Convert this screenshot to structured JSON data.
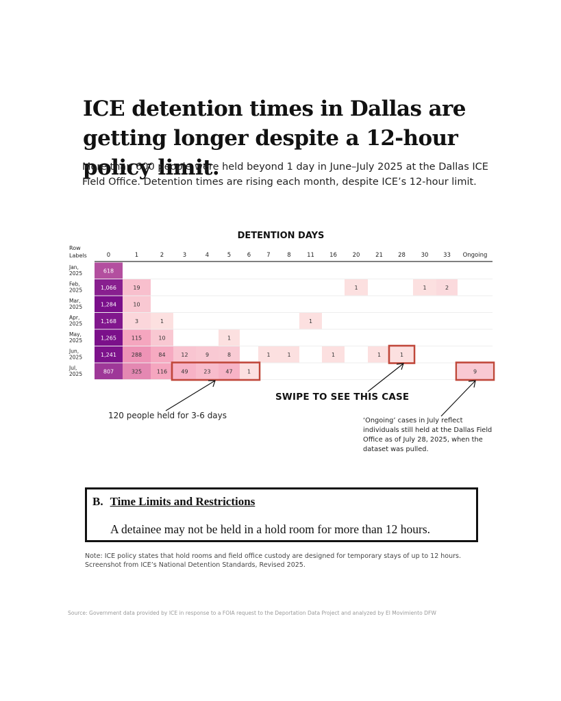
{
  "title": "ICE detention times in Dallas are getting longer despite a 12-hour policy limit.",
  "subtitle": "More than 600 people were held beyond 1 day in June–July 2025 at the Dallas ICE Field Office. Detention times are rising each month, despite ICE’s 12-hour limit.",
  "chart_data": {
    "type": "heatmap",
    "title": "DETENTION DAYS",
    "row_header": "Row Labels",
    "columns": [
      "0",
      "1",
      "2",
      "3",
      "4",
      "5",
      "6",
      "7",
      "8",
      "11",
      "16",
      "20",
      "21",
      "28",
      "30",
      "33",
      "Ongoing"
    ],
    "rows": [
      {
        "label": "Jan, 2025",
        "values": [
          618,
          null,
          null,
          null,
          null,
          null,
          null,
          null,
          null,
          null,
          null,
          null,
          null,
          null,
          null,
          null,
          null
        ]
      },
      {
        "label": "Feb, 2025",
        "values": [
          1066,
          19,
          null,
          null,
          null,
          null,
          null,
          null,
          null,
          null,
          null,
          1,
          null,
          null,
          1,
          2,
          null
        ]
      },
      {
        "label": "Mar, 2025",
        "values": [
          1284,
          10,
          null,
          null,
          null,
          null,
          null,
          null,
          null,
          null,
          null,
          null,
          null,
          null,
          null,
          null,
          null
        ]
      },
      {
        "label": "Apr, 2025",
        "values": [
          1168,
          3,
          1,
          null,
          null,
          null,
          null,
          null,
          null,
          1,
          null,
          null,
          null,
          null,
          null,
          null,
          null
        ]
      },
      {
        "label": "May, 2025",
        "values": [
          1265,
          115,
          10,
          null,
          null,
          1,
          null,
          null,
          null,
          null,
          null,
          null,
          null,
          null,
          null,
          null,
          null
        ]
      },
      {
        "label": "Jun, 2025",
        "values": [
          1241,
          288,
          84,
          12,
          9,
          8,
          null,
          1,
          1,
          null,
          1,
          null,
          1,
          1,
          null,
          null,
          null
        ]
      },
      {
        "label": "Jul, 2025",
        "values": [
          807,
          325,
          116,
          49,
          23,
          47,
          1,
          null,
          null,
          null,
          null,
          null,
          null,
          null,
          null,
          null,
          9
        ]
      }
    ],
    "value_labels": [
      [
        "618",
        "",
        "",
        "",
        "",
        "",
        "",
        "",
        "",
        "",
        "",
        "",
        "",
        "",
        "",
        "",
        ""
      ],
      [
        "1,066",
        "19",
        "",
        "",
        "",
        "",
        "",
        "",
        "",
        "",
        "",
        "1",
        "",
        "",
        "1",
        "2",
        ""
      ],
      [
        "1,284",
        "10",
        "",
        "",
        "",
        "",
        "",
        "",
        "",
        "",
        "",
        "",
        "",
        "",
        "",
        "",
        ""
      ],
      [
        "1,168",
        "3",
        "1",
        "",
        "",
        "",
        "",
        "",
        "",
        "1",
        "",
        "",
        "",
        "",
        "",
        "",
        ""
      ],
      [
        "1,265",
        "115",
        "10",
        "",
        "",
        "1",
        "",
        "",
        "",
        "",
        "",
        "",
        "",
        "",
        "",
        "",
        ""
      ],
      [
        "1,241",
        "288",
        "84",
        "12",
        "9",
        "8",
        "",
        "1",
        "1",
        "",
        "1",
        "",
        "1",
        "1",
        "",
        "",
        ""
      ],
      [
        "807",
        "325",
        "116",
        "49",
        "23",
        "47",
        "1",
        "",
        "",
        "",
        "",
        "",
        "",
        "",
        "",
        "",
        "9"
      ]
    ],
    "colors": {
      "scale_low": "#fdeae6",
      "scale_mid": "#f49ab8",
      "scale_high": "#7a0f8a",
      "highlight_box": "#c0473a"
    },
    "highlights": [
      {
        "row": "Jul, 2025",
        "columns": [
          "3",
          "6"
        ]
      },
      {
        "row": "Jun, 2025",
        "columns": [
          "28",
          "28"
        ]
      },
      {
        "row": "Jul, 2025",
        "columns": [
          "Ongoing",
          "Ongoing"
        ]
      }
    ],
    "annotations": [
      "SWIPE TO SEE THIS CASE",
      "120 people held for 3-6 days",
      "‘Ongoing’ cases in July reflect individuals still held at the Dallas Field Office as of July 28, 2025, when the dataset was pulled."
    ]
  },
  "callouts": {
    "swipe": "SWIPE TO SEE THIS CASE",
    "held": "120 people held for 3-6 days",
    "ongoing": "‘Ongoing’ cases in July reflect individuals still held at the Dallas Field Office as of July 28, 2025, when the dataset was pulled."
  },
  "policy": {
    "section": "B.",
    "heading": "Time Limits and Restrictions",
    "text": "A detainee may not be held in a hold room for more than 12 hours."
  },
  "note": "Note: ICE policy states that hold rooms and field office custody are designed for temporary stays of up to 12 hours. Screenshot from ICE’s National Detention Standards, Revised 2025.",
  "source": "Source: Government data provided by ICE in response to a FOIA request to the Deportation Data Project and analyzed by El Movimiento DFW"
}
